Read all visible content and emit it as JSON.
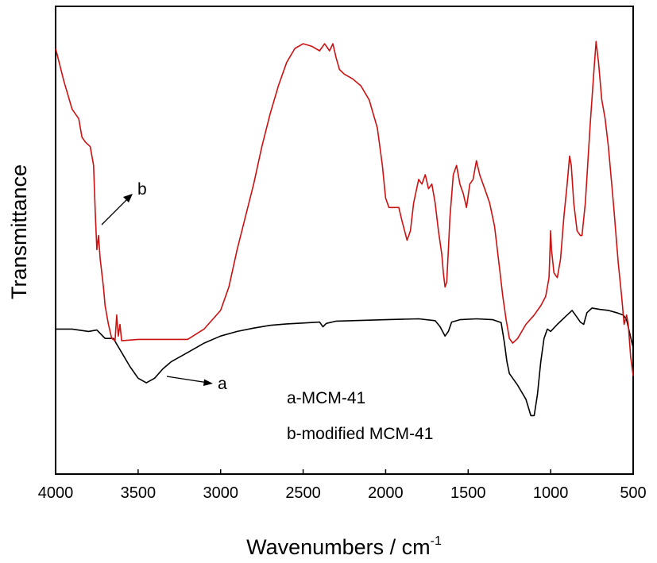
{
  "chart_data": {
    "type": "line",
    "xlabel": "Wavenumbers / cm",
    "xlabel_superscript": "-1",
    "ylabel": "Transmittance",
    "xlim": [
      4000,
      500
    ],
    "x_reversed": true,
    "ylim": [
      0,
      100
    ],
    "y_ticks_shown": false,
    "grid": false,
    "x_ticks": [
      "4000",
      "3500",
      "3000",
      "2500",
      "2000",
      "1500",
      "1000",
      "500"
    ],
    "legend_lines": [
      "a-MCM-41",
      "b-modified MCM-41"
    ],
    "legend_placement": "bottom-center",
    "series": [
      {
        "label": "a",
        "color": "#000000",
        "points": [
          [
            4000,
            31
          ],
          [
            3900,
            31
          ],
          [
            3800,
            30.5
          ],
          [
            3750,
            30.8
          ],
          [
            3700,
            29
          ],
          [
            3650,
            29
          ],
          [
            3600,
            26
          ],
          [
            3550,
            23
          ],
          [
            3500,
            20.5
          ],
          [
            3450,
            19.5
          ],
          [
            3400,
            20.5
          ],
          [
            3350,
            22.5
          ],
          [
            3300,
            24
          ],
          [
            3200,
            26
          ],
          [
            3100,
            28
          ],
          [
            3000,
            29.5
          ],
          [
            2900,
            30.5
          ],
          [
            2800,
            31.2
          ],
          [
            2700,
            31.8
          ],
          [
            2600,
            32.1
          ],
          [
            2500,
            32.3
          ],
          [
            2400,
            32.5
          ],
          [
            2380,
            31.5
          ],
          [
            2360,
            32.2
          ],
          [
            2300,
            32.7
          ],
          [
            2200,
            32.8
          ],
          [
            2000,
            33
          ],
          [
            1800,
            33.2
          ],
          [
            1700,
            32.8
          ],
          [
            1670,
            31.5
          ],
          [
            1640,
            29.5
          ],
          [
            1620,
            30.5
          ],
          [
            1600,
            32.5
          ],
          [
            1550,
            33
          ],
          [
            1450,
            33.2
          ],
          [
            1350,
            33
          ],
          [
            1300,
            32.4
          ],
          [
            1280,
            28
          ],
          [
            1265,
            24
          ],
          [
            1250,
            21.5
          ],
          [
            1200,
            19
          ],
          [
            1150,
            16
          ],
          [
            1120,
            12.5
          ],
          [
            1100,
            12.5
          ],
          [
            1080,
            17
          ],
          [
            1060,
            24
          ],
          [
            1040,
            29
          ],
          [
            1020,
            31
          ],
          [
            1000,
            30.5
          ],
          [
            960,
            32
          ],
          [
            900,
            34
          ],
          [
            870,
            35
          ],
          [
            850,
            34
          ],
          [
            820,
            32.5
          ],
          [
            800,
            32
          ],
          [
            780,
            34.5
          ],
          [
            750,
            35.5
          ],
          [
            700,
            35.2
          ],
          [
            650,
            35
          ],
          [
            600,
            34.5
          ],
          [
            560,
            34
          ],
          [
            540,
            33
          ],
          [
            520,
            30
          ],
          [
            500,
            27
          ]
        ]
      },
      {
        "label": "b",
        "color": "#cc1111",
        "points": [
          [
            4000,
            91
          ],
          [
            3950,
            84
          ],
          [
            3900,
            78
          ],
          [
            3860,
            76
          ],
          [
            3840,
            72
          ],
          [
            3820,
            71
          ],
          [
            3790,
            70
          ],
          [
            3770,
            66
          ],
          [
            3760,
            56
          ],
          [
            3750,
            48
          ],
          [
            3740,
            51
          ],
          [
            3730,
            46
          ],
          [
            3710,
            40
          ],
          [
            3700,
            36
          ],
          [
            3680,
            32
          ],
          [
            3660,
            29
          ],
          [
            3640,
            28.5
          ],
          [
            3630,
            34
          ],
          [
            3620,
            29.5
          ],
          [
            3610,
            32
          ],
          [
            3600,
            28.5
          ],
          [
            3500,
            28.8
          ],
          [
            3400,
            28.8
          ],
          [
            3300,
            28.8
          ],
          [
            3200,
            28.8
          ],
          [
            3100,
            31
          ],
          [
            3000,
            35
          ],
          [
            2950,
            40
          ],
          [
            2900,
            48
          ],
          [
            2800,
            62
          ],
          [
            2750,
            70
          ],
          [
            2700,
            77
          ],
          [
            2650,
            83
          ],
          [
            2600,
            88
          ],
          [
            2550,
            91
          ],
          [
            2500,
            92
          ],
          [
            2450,
            91.5
          ],
          [
            2400,
            90.5
          ],
          [
            2370,
            92
          ],
          [
            2340,
            90.5
          ],
          [
            2320,
            92
          ],
          [
            2300,
            89
          ],
          [
            2280,
            86.5
          ],
          [
            2250,
            85.5
          ],
          [
            2200,
            84.5
          ],
          [
            2150,
            83
          ],
          [
            2100,
            80
          ],
          [
            2050,
            74
          ],
          [
            2020,
            66
          ],
          [
            2000,
            59
          ],
          [
            1980,
            57
          ],
          [
            1950,
            57
          ],
          [
            1920,
            57
          ],
          [
            1900,
            54
          ],
          [
            1870,
            50
          ],
          [
            1850,
            52
          ],
          [
            1830,
            58
          ],
          [
            1800,
            63
          ],
          [
            1780,
            62
          ],
          [
            1760,
            64
          ],
          [
            1740,
            61
          ],
          [
            1720,
            62
          ],
          [
            1700,
            58
          ],
          [
            1680,
            52
          ],
          [
            1660,
            47
          ],
          [
            1650,
            43
          ],
          [
            1640,
            40
          ],
          [
            1630,
            41
          ],
          [
            1620,
            48
          ],
          [
            1610,
            55
          ],
          [
            1590,
            64
          ],
          [
            1570,
            66
          ],
          [
            1550,
            62
          ],
          [
            1530,
            60
          ],
          [
            1510,
            57
          ],
          [
            1490,
            62
          ],
          [
            1470,
            63
          ],
          [
            1450,
            67
          ],
          [
            1430,
            64
          ],
          [
            1400,
            61
          ],
          [
            1370,
            58
          ],
          [
            1340,
            53
          ],
          [
            1310,
            44
          ],
          [
            1290,
            38
          ],
          [
            1270,
            33
          ],
          [
            1250,
            29
          ],
          [
            1230,
            28
          ],
          [
            1200,
            29
          ],
          [
            1150,
            32
          ],
          [
            1100,
            34
          ],
          [
            1060,
            36
          ],
          [
            1030,
            38
          ],
          [
            1010,
            42
          ],
          [
            1000,
            52
          ],
          [
            995,
            48
          ],
          [
            980,
            43
          ],
          [
            960,
            42
          ],
          [
            940,
            46
          ],
          [
            920,
            55
          ],
          [
            900,
            62
          ],
          [
            885,
            68
          ],
          [
            875,
            66
          ],
          [
            860,
            58
          ],
          [
            840,
            52
          ],
          [
            820,
            51
          ],
          [
            810,
            51
          ],
          [
            790,
            58
          ],
          [
            760,
            75
          ],
          [
            740,
            85
          ],
          [
            725,
            92.5
          ],
          [
            710,
            88
          ],
          [
            690,
            80
          ],
          [
            670,
            76
          ],
          [
            650,
            70
          ],
          [
            620,
            58
          ],
          [
            590,
            45
          ],
          [
            570,
            38
          ],
          [
            555,
            32
          ],
          [
            540,
            34
          ],
          [
            530,
            32
          ],
          [
            515,
            25
          ],
          [
            500,
            21
          ]
        ]
      }
    ],
    "annotations": [
      {
        "text": "a",
        "series": "a"
      },
      {
        "text": "b",
        "series": "b"
      }
    ]
  }
}
